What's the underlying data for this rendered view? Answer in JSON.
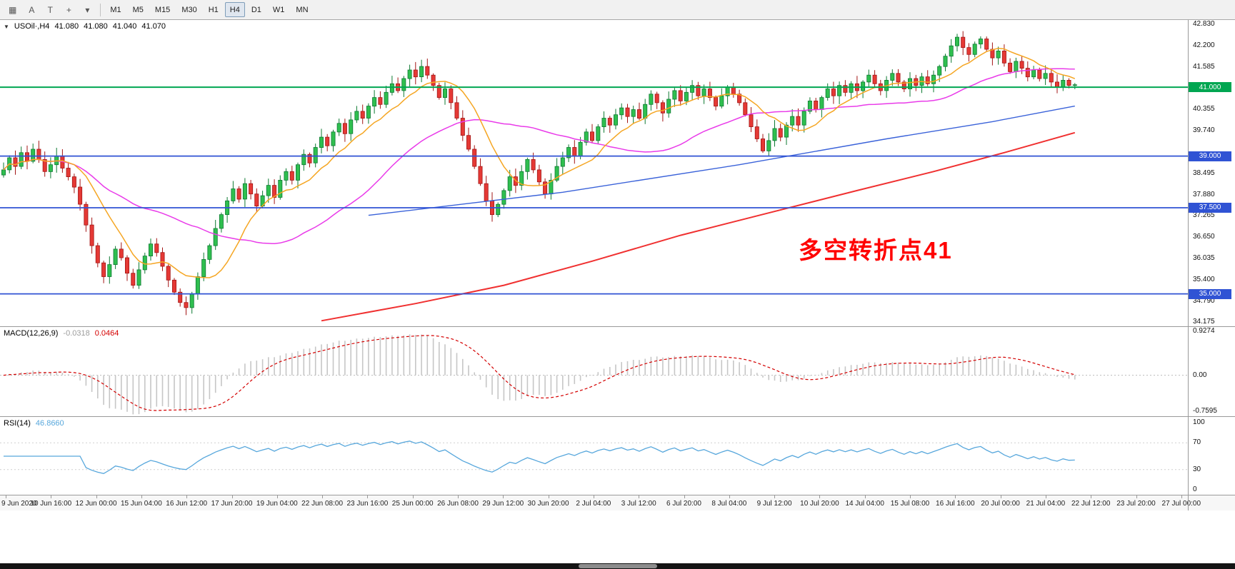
{
  "toolbar": {
    "tools": [
      {
        "name": "chart-type-button",
        "glyph": "▦"
      },
      {
        "name": "cursor-tool-button",
        "glyph": "A"
      },
      {
        "name": "text-tool-button",
        "glyph": "T"
      },
      {
        "name": "crosshair-button",
        "glyph": "+"
      },
      {
        "name": "drawing-dropdown",
        "glyph": "▾"
      }
    ],
    "timeframes": [
      "M1",
      "M5",
      "M15",
      "M30",
      "H1",
      "H4",
      "D1",
      "W1",
      "MN"
    ],
    "active_timeframe": "H4"
  },
  "chart": {
    "collapse_glyph": "▼",
    "symbol_label": "USOil·,H4",
    "open": "41.080",
    "high": "41.080",
    "low": "41.040",
    "close": "41.070",
    "annotation": {
      "text": "多空转折点41",
      "color": "#FF0000"
    },
    "y_axis": {
      "min": 34.06,
      "max": 42.95,
      "ticks": [
        "42.830",
        "42.200",
        "41.585",
        "40.355",
        "39.740",
        "38.495",
        "37.880",
        "37.265",
        "36.650",
        "36.035",
        "35.400",
        "34.790",
        "34.175"
      ]
    },
    "price_lines": [
      {
        "price": 41.0,
        "label": "41.000",
        "color": "#00A651",
        "width": 2
      },
      {
        "price": 39.0,
        "label": "39.000",
        "color": "#3053D4",
        "width": 1.8
      },
      {
        "price": 37.5,
        "label": "37.500",
        "color": "#3053D4",
        "width": 1.8
      },
      {
        "price": 35.0,
        "label": "35.000",
        "color": "#3053D4",
        "width": 1.8
      }
    ],
    "colors": {
      "up": "#2FBF4F",
      "up_border": "#0E7A32",
      "down": "#E53935",
      "down_border": "#A31515",
      "background": "#FFFFFF"
    }
  },
  "chart_data": {
    "type": "candlestick",
    "symbol": "USOil",
    "timeframe": "H4",
    "y_range": [
      34.175,
      42.83
    ],
    "closes": [
      38.6,
      38.95,
      38.7,
      39.1,
      38.85,
      39.2,
      38.9,
      38.55,
      38.75,
      39.0,
      38.65,
      38.4,
      38.1,
      37.6,
      37.0,
      36.4,
      35.9,
      35.5,
      35.85,
      36.3,
      36.05,
      35.6,
      35.25,
      35.7,
      36.1,
      36.45,
      36.2,
      35.8,
      35.4,
      35.05,
      34.75,
      34.6,
      35.0,
      35.5,
      36.0,
      36.4,
      36.9,
      37.3,
      37.7,
      38.05,
      37.75,
      38.2,
      37.9,
      37.55,
      37.85,
      38.15,
      37.8,
      38.3,
      38.55,
      38.3,
      38.75,
      39.05,
      38.8,
      39.25,
      39.55,
      39.3,
      39.7,
      39.95,
      39.65,
      40.05,
      40.3,
      40.1,
      40.45,
      40.7,
      40.5,
      40.85,
      41.1,
      40.9,
      41.25,
      41.5,
      41.3,
      41.6,
      41.35,
      41.05,
      40.7,
      40.95,
      40.55,
      40.1,
      39.6,
      39.2,
      38.7,
      38.2,
      37.7,
      37.3,
      37.6,
      38.0,
      38.4,
      38.15,
      38.55,
      38.9,
      38.6,
      38.25,
      37.9,
      38.3,
      38.7,
      38.95,
      39.25,
      39.0,
      39.4,
      39.7,
      39.45,
      39.85,
      40.1,
      39.9,
      40.2,
      40.4,
      40.15,
      40.35,
      40.1,
      40.5,
      40.8,
      40.55,
      40.25,
      40.65,
      40.9,
      40.6,
      40.85,
      41.05,
      40.75,
      40.95,
      40.7,
      40.45,
      40.75,
      41.0,
      40.8,
      40.55,
      40.2,
      39.85,
      39.5,
      39.15,
      39.45,
      39.8,
      39.55,
      39.9,
      40.15,
      39.9,
      40.3,
      40.6,
      40.35,
      40.7,
      40.95,
      40.75,
      41.05,
      40.85,
      41.1,
      40.9,
      41.15,
      41.35,
      41.1,
      40.9,
      41.2,
      41.4,
      41.15,
      40.95,
      41.25,
      41.05,
      41.3,
      41.1,
      41.35,
      41.6,
      41.9,
      42.2,
      42.45,
      42.15,
      41.95,
      42.25,
      42.4,
      42.1,
      41.85,
      42.05,
      41.7,
      41.45,
      41.75,
      41.55,
      41.3,
      41.5,
      41.25,
      41.4,
      41.15,
      41.0,
      41.2,
      41.05,
      41.07
    ],
    "x_labels": [
      "9 Jun 2020",
      "10 Jun 16:00",
      "12 Jun 00:00",
      "15 Jun 04:00",
      "16 Jun 12:00",
      "17 Jun 20:00",
      "19 Jun 04:00",
      "22 Jun 08:00",
      "23 Jun 16:00",
      "25 Jun 00:00",
      "26 Jun 08:00",
      "29 Jun 12:00",
      "30 Jun 20:00",
      "2 Jul 04:00",
      "3 Jul 12:00",
      "6 Jul 20:00",
      "8 Jul 04:00",
      "9 Jul 12:00",
      "10 Jul 20:00",
      "14 Jul 04:00",
      "15 Jul 08:00",
      "16 Jul 16:00",
      "20 Jul 00:00",
      "21 Jul 04:00",
      "22 Jul 12:00",
      "23 Jul 20:00",
      "27 Jul 00:00"
    ],
    "overlays": [
      {
        "name": "ma-slow-red",
        "color": "#F03030",
        "width": 2,
        "points": [
          [
            54,
            34.22
          ],
          [
            70,
            34.72
          ],
          [
            85,
            35.25
          ],
          [
            100,
            35.95
          ],
          [
            115,
            36.7
          ],
          [
            130,
            37.35
          ],
          [
            145,
            38.0
          ],
          [
            158,
            38.55
          ],
          [
            170,
            39.1
          ],
          [
            182,
            39.68
          ]
        ]
      },
      {
        "name": "trend-blue",
        "color": "#3A62D9",
        "width": 1.4,
        "points": [
          [
            62,
            37.28
          ],
          [
            95,
            37.95
          ],
          [
            125,
            38.75
          ],
          [
            150,
            39.5
          ],
          [
            168,
            40.0
          ],
          [
            182,
            40.45
          ]
        ]
      },
      {
        "name": "ma-mid-magenta",
        "color": "#E93BE9",
        "width": 1.5,
        "window": 34
      },
      {
        "name": "ma-fast-orange",
        "color": "#F5A623",
        "width": 1.5,
        "window": 10
      }
    ]
  },
  "macd": {
    "name": "MACD(12,26,9)",
    "value_main": "-0.0318",
    "value_signal": "0.0464",
    "value_main_color": "#9C9C9C",
    "value_signal_color": "#D40000",
    "ticks": [
      "0.9274",
      "0.00",
      "-0.7595"
    ],
    "histogram_color": "#C6C6C6",
    "signal_color": "#D40000",
    "params": [
      12,
      26,
      9
    ]
  },
  "rsi": {
    "name": "RSI(14)",
    "value": "46.8660",
    "line_color": "#57A7DC",
    "levels": [
      70,
      30
    ],
    "ticks": [
      "100",
      "70",
      "30",
      "0"
    ],
    "period": 14
  }
}
